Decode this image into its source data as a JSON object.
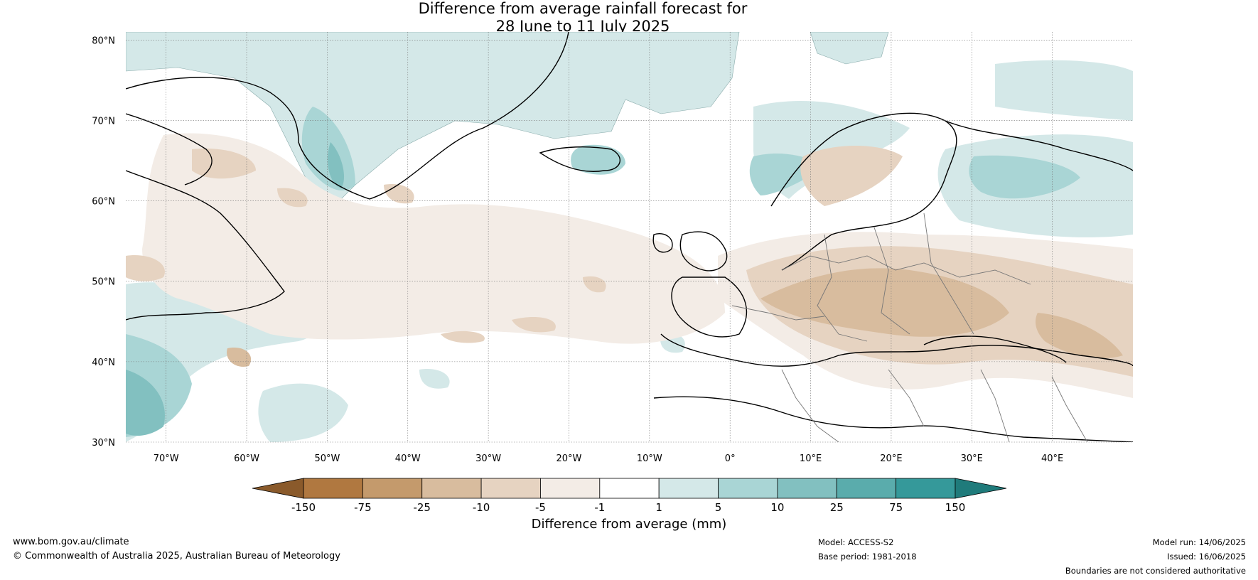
{
  "title": {
    "line1": "Difference from average rainfall forecast for",
    "line2": "28 June to 11 July 2025"
  },
  "map": {
    "lat_labels": [
      "80°N",
      "70°N",
      "60°N",
      "50°N",
      "40°N",
      "30°N"
    ],
    "lon_labels": [
      "70°W",
      "60°W",
      "50°W",
      "40°W",
      "30°W",
      "20°W",
      "10°W",
      "0°",
      "10°E",
      "20°E",
      "30°E",
      "40°E"
    ],
    "lat_range": [
      30,
      81
    ],
    "lon_range": [
      -75,
      50
    ]
  },
  "colorbar": {
    "title": "Difference from average (mm)",
    "tick_labels": [
      "-150",
      "-75",
      "-25",
      "-10",
      "-5",
      "-1",
      "1",
      "5",
      "10",
      "25",
      "75",
      "150"
    ],
    "colors": [
      "#8a5a2b",
      "#b07840",
      "#c49a6c",
      "#d8bc9e",
      "#e6d3c1",
      "#f3ece6",
      "#ffffff",
      "#d4e8e8",
      "#a9d5d5",
      "#82c0c0",
      "#5aacac",
      "#35999a",
      "#1f7b7b"
    ]
  },
  "footer": {
    "website": "www.bom.gov.au/climate",
    "copyright": "© Commonwealth of Australia 2025, Australian Bureau of Meteorology",
    "model": "Model: ACCESS-S2",
    "base_period": "Base period: 1981-2018",
    "model_run": "Model run: 14/06/2025",
    "issued": "Issued: 16/06/2025",
    "disclaimer": "Boundaries are not considered authoritative"
  }
}
